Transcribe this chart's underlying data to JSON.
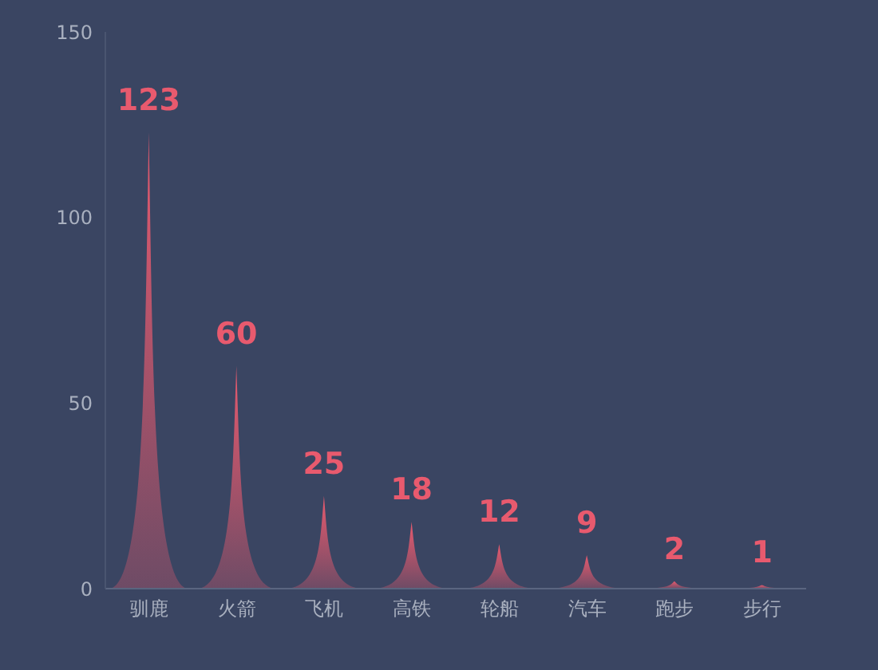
{
  "chart_data": {
    "type": "bar",
    "categories": [
      "驯鹿",
      "火箭",
      "飞机",
      "高铁",
      "轮船",
      "汽车",
      "跑步",
      "步行"
    ],
    "values": [
      123,
      60,
      25,
      18,
      12,
      9,
      2,
      1
    ],
    "color": "#e85a6e",
    "ylim": [
      0,
      150
    ],
    "yticks": [
      0,
      50,
      100,
      150
    ],
    "grid": false,
    "legend": false,
    "data_labels": true
  }
}
